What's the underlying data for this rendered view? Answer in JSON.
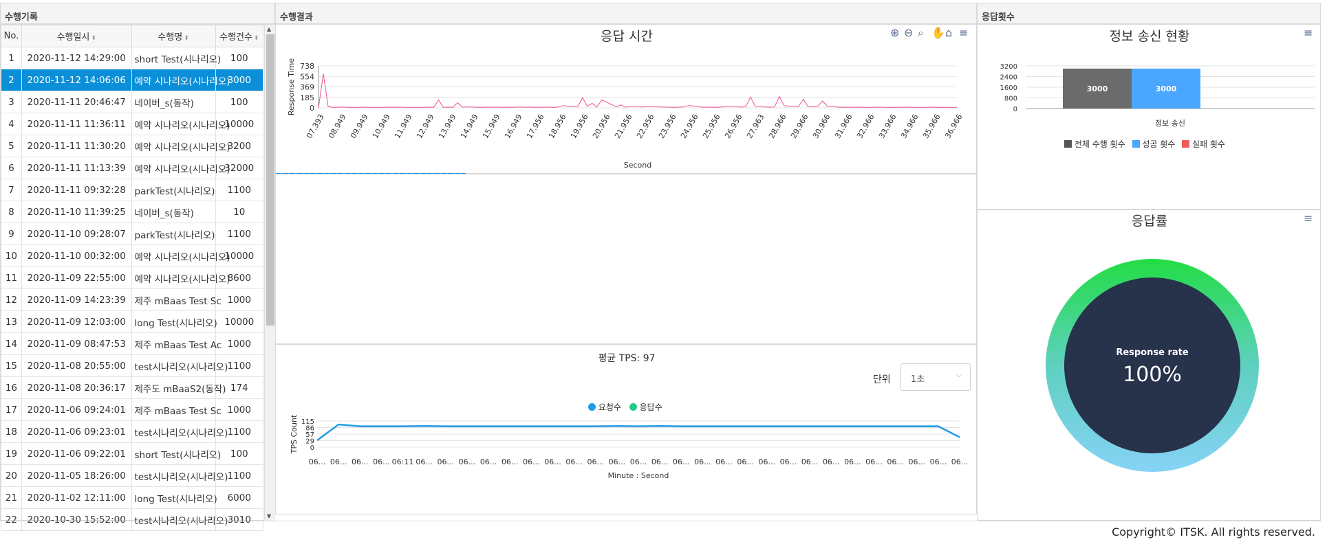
{
  "panels": {
    "history_title": "수행기록",
    "result_title": "수행결과",
    "count_title": "응답횟수"
  },
  "table": {
    "headers": [
      "No.",
      "수행일시",
      "수행명",
      "수행건수"
    ],
    "rows": [
      {
        "no": "1",
        "date": "2020-11-12 14:29:00",
        "name": "short Test(시나리오)",
        "count": "100"
      },
      {
        "no": "2",
        "date": "2020-11-12 14:06:06",
        "name": "예약 시나리오(시나리오)",
        "count": "3000"
      },
      {
        "no": "3",
        "date": "2020-11-11 20:46:47",
        "name": "네이버_s(동작)",
        "count": "100"
      },
      {
        "no": "4",
        "date": "2020-11-11 11:36:11",
        "name": "예약 시나리오(시나리오)",
        "count": "10000"
      },
      {
        "no": "5",
        "date": "2020-11-11 11:30:20",
        "name": "예약 시나리오(시나리오)",
        "count": "3200"
      },
      {
        "no": "6",
        "date": "2020-11-11 11:13:39",
        "name": "예약 시나리오(시나리오)",
        "count": "32000"
      },
      {
        "no": "7",
        "date": "2020-11-11 09:32:28",
        "name": "parkTest(시나리오)",
        "count": "1100"
      },
      {
        "no": "8",
        "date": "2020-11-10 11:39:25",
        "name": "네이버_s(동작)",
        "count": "10"
      },
      {
        "no": "9",
        "date": "2020-11-10 09:28:07",
        "name": "parkTest(시나리오)",
        "count": "1100"
      },
      {
        "no": "10",
        "date": "2020-11-10 00:32:00",
        "name": "예약 시나리오(시나리오)",
        "count": "10000"
      },
      {
        "no": "11",
        "date": "2020-11-09 22:55:00",
        "name": "예약 시나리오(시나리오)",
        "count": "8600"
      },
      {
        "no": "12",
        "date": "2020-11-09 14:23:39",
        "name": "제주 mBaas Test Sc",
        "count": "1000"
      },
      {
        "no": "13",
        "date": "2020-11-09 12:03:00",
        "name": "long Test(시나리오)",
        "count": "10000"
      },
      {
        "no": "14",
        "date": "2020-11-09 08:47:53",
        "name": "제주 mBaas Test Ac",
        "count": "1000"
      },
      {
        "no": "15",
        "date": "2020-11-08 20:55:00",
        "name": "test시나리오(시나리오)",
        "count": "1100"
      },
      {
        "no": "16",
        "date": "2020-11-08 20:36:17",
        "name": "제주도 mBaaS2(동작)",
        "count": "174"
      },
      {
        "no": "17",
        "date": "2020-11-06 09:24:01",
        "name": "제주 mBaas Test Sc",
        "count": "1000"
      },
      {
        "no": "18",
        "date": "2020-11-06 09:23:01",
        "name": "test시나리오(시나리오)",
        "count": "1100"
      },
      {
        "no": "19",
        "date": "2020-11-06 09:22:01",
        "name": "short Test(시나리오)",
        "count": "100"
      },
      {
        "no": "20",
        "date": "2020-11-05 18:26:00",
        "name": "test시나리오(시나리오)",
        "count": "1100"
      },
      {
        "no": "21",
        "date": "2020-11-02 12:11:00",
        "name": "long Test(시나리오)",
        "count": "6000"
      },
      {
        "no": "22",
        "date": "2020-10-30 15:52:00",
        "name": "test시나리오(시나리오)",
        "count": "3010"
      }
    ],
    "selected_row": 1
  },
  "response_chart": {
    "title": "응답 시간",
    "ylabel": "Response Time",
    "xlabel": "Second",
    "yticks": [
      "738",
      "554",
      "369",
      "185",
      "0"
    ],
    "xticks": [
      "07.393",
      "08.949",
      "09.949",
      "10.949",
      "11.949",
      "12.949",
      "13.949",
      "14.949",
      "15.949",
      "16.949",
      "17.956",
      "18.956",
      "19.956",
      "20.956",
      "21.956",
      "22.956",
      "23.956",
      "24.956",
      "25.956",
      "26.956",
      "27.963",
      "28.966",
      "29.966",
      "30.966",
      "31.966",
      "32.966",
      "33.966",
      "34.966",
      "35.966",
      "36.966"
    ]
  },
  "tps_chart": {
    "title": "평균 TPS: 97",
    "unit_label": "단위",
    "unit_value": "1초",
    "legend": [
      "요청수",
      "응답수"
    ],
    "ylabel": "TPS Count",
    "xlabel": "Minute : Second",
    "yticks": [
      "115",
      "86",
      "57",
      "29",
      "0"
    ],
    "xticks": [
      "06...",
      "06...",
      "06...",
      "06...",
      "06:11",
      "06...",
      "06...",
      "06...",
      "06...",
      "06...",
      "06...",
      "06...",
      "06...",
      "06...",
      "06...",
      "06...",
      "06...",
      "06...",
      "06...",
      "06...",
      "06...",
      "06...",
      "06...",
      "06...",
      "06...",
      "06...",
      "06...",
      "06...",
      "06...",
      "06...",
      "06..."
    ]
  },
  "count_chart": {
    "title": "정보 송신 현황",
    "yticks": [
      "3200",
      "2400",
      "1600",
      "800",
      "0"
    ],
    "bar_labels": [
      "3000",
      "3000"
    ],
    "category": "정보 송신",
    "legend": [
      "전체 수행 횟수",
      "성공 횟수",
      "실패 횟수"
    ]
  },
  "rate_chart": {
    "title": "응답률",
    "label": "Response rate",
    "value": "100%"
  },
  "footer": {
    "text": "Copyright© ITSK. All rights reserved."
  },
  "colors": {
    "selected": "#0b8fd8",
    "line_pink": "#f0509a",
    "tps_line": "#1e9be6",
    "bar_total": "#6b6b6b",
    "bar_success": "#4aa6ff",
    "bar_fail": "#f25b5b",
    "donut_inner": "#27324b"
  },
  "chart_data": [
    {
      "type": "line",
      "title": "응답 시간",
      "xlabel": "Second",
      "ylabel": "Response Time",
      "ylim": [
        0,
        738
      ],
      "series": [
        {
          "values": [
            0,
            600,
            20,
            10,
            12,
            14,
            10,
            8,
            10,
            12,
            11,
            10,
            9,
            10,
            12,
            10,
            11,
            12,
            10,
            9,
            10,
            10,
            11,
            12,
            10,
            140,
            10,
            12,
            11,
            90,
            12,
            14,
            15,
            10,
            10,
            12,
            11,
            13,
            10,
            12,
            11,
            12,
            14,
            12,
            13,
            10,
            11,
            12,
            12,
            10,
            15,
            40,
            30,
            20,
            22,
            180,
            25,
            80,
            15,
            140,
            100,
            60,
            20,
            50,
            12,
            20,
            30,
            15,
            18,
            20,
            22,
            15,
            16,
            12,
            10,
            12,
            14,
            40,
            35,
            20,
            12,
            13,
            11,
            10,
            16,
            20,
            30,
            25,
            12,
            20,
            190,
            25,
            30,
            14,
            12,
            14,
            200,
            40,
            30,
            22,
            20,
            150,
            18,
            20,
            25,
            120,
            30,
            20,
            15,
            10,
            12,
            10,
            12,
            11,
            9,
            10,
            11,
            12,
            10,
            9,
            11,
            10,
            12,
            11,
            10,
            9,
            10,
            11,
            12,
            10,
            11,
            10,
            9,
            8
          ]
        }
      ]
    },
    {
      "type": "line",
      "title": "평균 TPS: 97",
      "xlabel": "Minute : Second",
      "ylabel": "TPS Count",
      "ylim": [
        0,
        115
      ],
      "series": [
        {
          "name": "요청수",
          "values": [
            30,
            100,
            92,
            92,
            92,
            93,
            92,
            92,
            92,
            92,
            92,
            92,
            92,
            92,
            93,
            92,
            93,
            92,
            92,
            92,
            92,
            92,
            92,
            92,
            92,
            92,
            92,
            92,
            92,
            92,
            44
          ]
        }
      ]
    },
    {
      "type": "bar",
      "title": "정보 송신 현황",
      "categories": [
        "정보 송신"
      ],
      "ylim": [
        0,
        3200
      ],
      "series": [
        {
          "name": "전체 수행 횟수",
          "values": [
            3000
          ]
        },
        {
          "name": "성공 횟수",
          "values": [
            3000
          ]
        },
        {
          "name": "실패 횟수",
          "values": [
            0
          ]
        }
      ]
    }
  ]
}
